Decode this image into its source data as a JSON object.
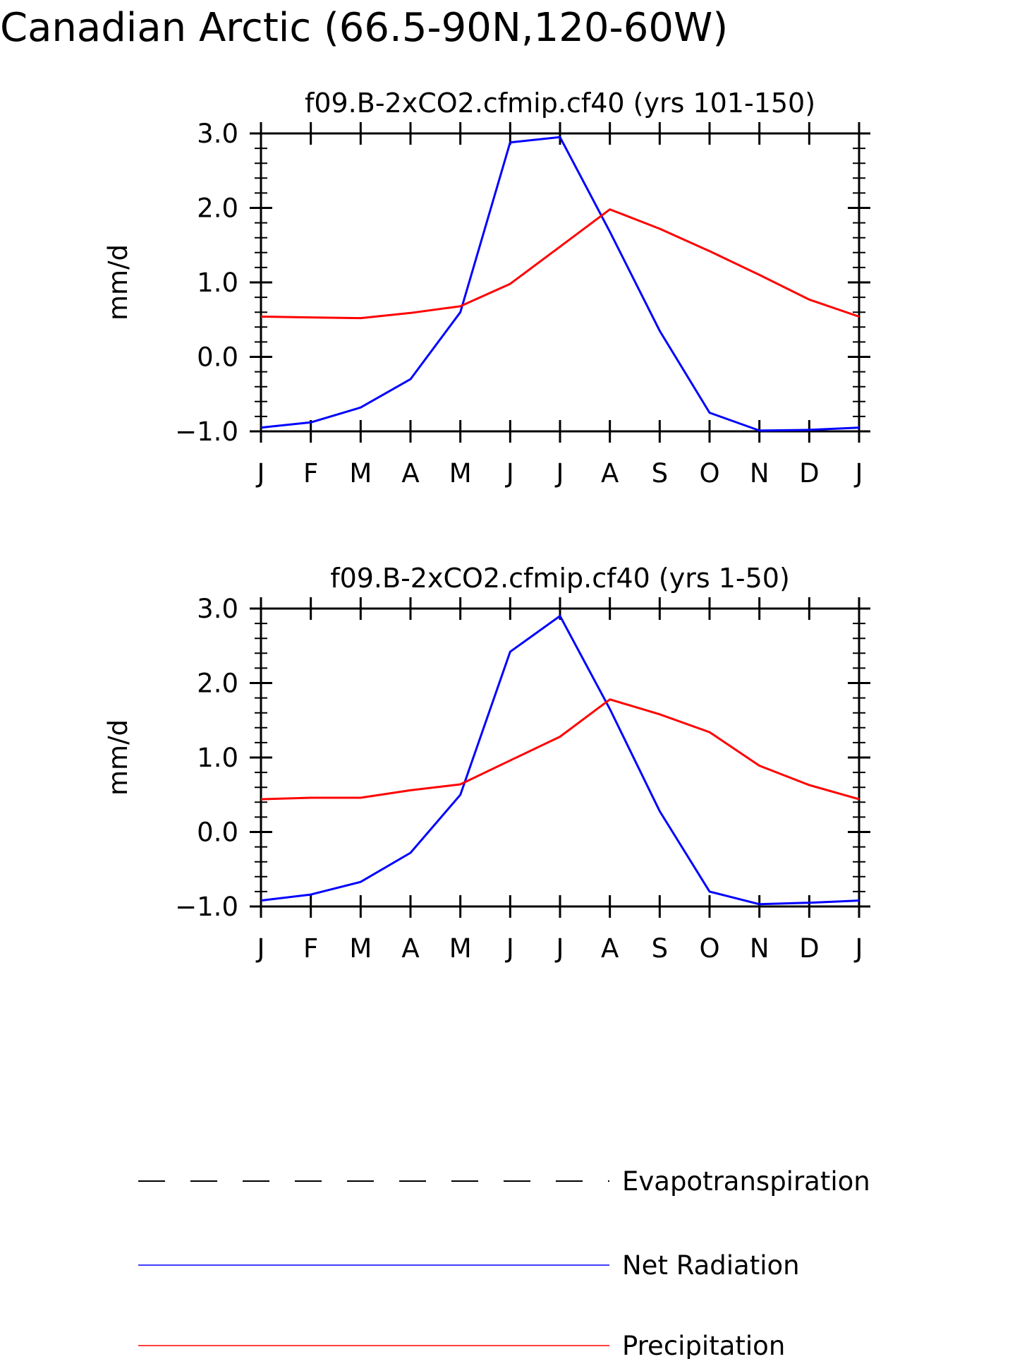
{
  "figure": {
    "title": "Canadian Arctic (66.5-90N,120-60W)"
  },
  "colors": {
    "net_radiation": "#0000ff",
    "precipitation": "#ff0000",
    "evapotranspiration": "#000000",
    "axes": "#000000"
  },
  "legend": {
    "items": [
      {
        "label": "Evapotranspiration",
        "style": "dashed",
        "color_key": "evapotranspiration"
      },
      {
        "label": "Net Radiation",
        "style": "solid",
        "color_key": "net_radiation"
      },
      {
        "label": "Precipitation",
        "style": "solid",
        "color_key": "precipitation"
      }
    ]
  },
  "chart_data": [
    {
      "type": "line",
      "title": "f09.B-2xCO2.cfmip.cf40 (yrs 101-150)",
      "ylabel": "mm/d",
      "xlabel": "",
      "categories": [
        "J",
        "F",
        "M",
        "A",
        "M",
        "J",
        "J",
        "A",
        "S",
        "O",
        "N",
        "D",
        "J"
      ],
      "ylim": [
        -1.0,
        3.0
      ],
      "yticks": [
        "-1.0",
        "0.0",
        "1.0",
        "2.0",
        "3.0"
      ],
      "grid": false,
      "series": [
        {
          "name": "Net Radiation",
          "color_key": "net_radiation",
          "values": [
            -0.95,
            -0.88,
            -0.68,
            -0.3,
            0.6,
            2.88,
            2.95,
            1.68,
            0.35,
            -0.75,
            -0.99,
            -0.98,
            -0.95
          ]
        },
        {
          "name": "Precipitation",
          "color_key": "precipitation",
          "values": [
            0.54,
            0.53,
            0.52,
            0.59,
            0.68,
            0.98,
            1.48,
            1.98,
            1.72,
            1.42,
            1.1,
            0.77,
            0.54
          ]
        }
      ]
    },
    {
      "type": "line",
      "title": "f09.B-2xCO2.cfmip.cf40 (yrs 1-50)",
      "ylabel": "mm/d",
      "xlabel": "",
      "categories": [
        "J",
        "F",
        "M",
        "A",
        "M",
        "J",
        "J",
        "A",
        "S",
        "O",
        "N",
        "D",
        "J"
      ],
      "ylim": [
        -1.0,
        3.0
      ],
      "yticks": [
        "-1.0",
        "0.0",
        "1.0",
        "2.0",
        "3.0"
      ],
      "grid": false,
      "series": [
        {
          "name": "Net Radiation",
          "color_key": "net_radiation",
          "values": [
            -0.92,
            -0.84,
            -0.67,
            -0.28,
            0.5,
            2.42,
            2.9,
            1.65,
            0.28,
            -0.8,
            -0.97,
            -0.95,
            -0.92
          ]
        },
        {
          "name": "Precipitation",
          "color_key": "precipitation",
          "values": [
            0.44,
            0.46,
            0.46,
            0.56,
            0.64,
            0.96,
            1.28,
            1.78,
            1.58,
            1.34,
            0.89,
            0.63,
            0.44
          ]
        }
      ]
    }
  ]
}
